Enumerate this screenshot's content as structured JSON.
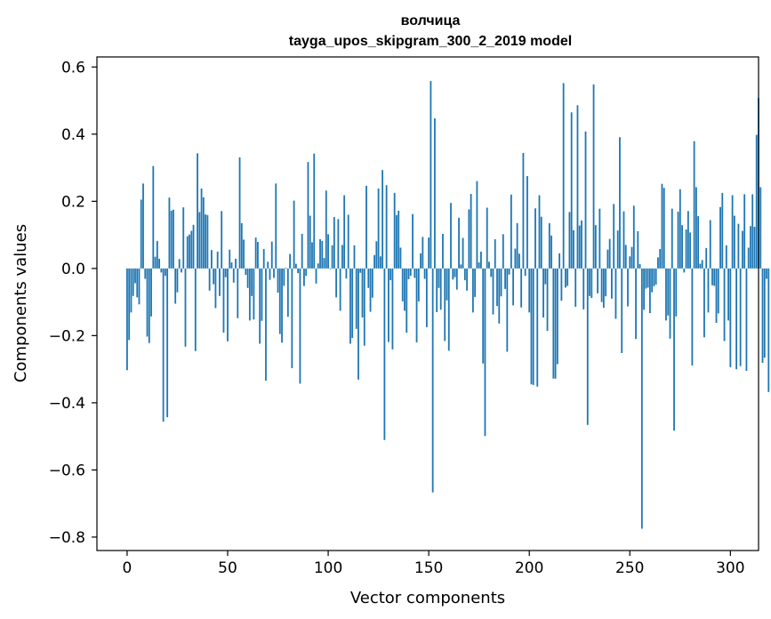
{
  "chart_data": {
    "type": "bar",
    "title": "волчица",
    "subtitle": "tayga_upos_skipgram_300_2_2019 model",
    "xlabel": "Vector components",
    "ylabel": "Components values",
    "xlim": [
      -15,
      314
    ],
    "ylim": [
      -0.84,
      0.63
    ],
    "xticks": [
      0,
      50,
      100,
      150,
      200,
      250,
      300
    ],
    "yticks": [
      -0.8,
      -0.6,
      -0.4,
      -0.2,
      0.0,
      0.2,
      0.4,
      0.6
    ],
    "xtick_labels": [
      "0",
      "50",
      "100",
      "150",
      "200",
      "250",
      "300"
    ],
    "ytick_labels": [
      "−0.8",
      "−0.6",
      "−0.4",
      "−0.2",
      "0.0",
      "0.2",
      "0.4",
      "0.6"
    ],
    "grid": false,
    "bar_color": "#1f77b4",
    "values": [
      -0.303,
      -0.213,
      -0.131,
      -0.082,
      -0.044,
      -0.086,
      -0.107,
      0.205,
      0.253,
      -0.031,
      -0.203,
      -0.222,
      -0.143,
      0.305,
      0.035,
      0.082,
      0.029,
      -0.012,
      -0.456,
      -0.022,
      -0.443,
      0.211,
      0.172,
      0.175,
      -0.105,
      -0.071,
      0.028,
      -0.012,
      0.182,
      -0.233,
      0.096,
      0.101,
      0.112,
      0.13,
      -0.246,
      0.343,
      0.168,
      0.238,
      0.212,
      0.161,
      0.159,
      -0.066,
      0.055,
      -0.047,
      -0.118,
      0.05,
      -0.082,
      0.171,
      -0.191,
      -0.026,
      -0.217,
      0.056,
      0.018,
      -0.042,
      0.029,
      -0.148,
      0.331,
      0.135,
      0.086,
      -0.019,
      -0.058,
      -0.155,
      -0.082,
      -0.152,
      0.092,
      0.079,
      -0.224,
      -0.156,
      0.058,
      -0.334,
      0.02,
      -0.034,
      0.08,
      -0.028,
      0.253,
      -0.072,
      -0.195,
      -0.221,
      -0.052,
      0.002,
      -0.144,
      0.043,
      -0.297,
      0.202,
      0.014,
      -0.014,
      -0.343,
      0.103,
      -0.052,
      -0.022,
      0.317,
      0.157,
      0.078,
      0.342,
      -0.045,
      0.015,
      0.087,
      0.082,
      0.031,
      0.232,
      0.102,
      -0.002,
      0.069,
      0.153,
      -0.086,
      0.147,
      -0.126,
      0.07,
      0.218,
      -0.03,
      0.16,
      -0.224,
      -0.207,
      0.069,
      -0.18,
      -0.331,
      -0.013,
      -0.146,
      -0.23,
      0.246,
      -0.058,
      -0.129,
      -0.087,
      0.04,
      0.081,
      0.238,
      0.036,
      0.293,
      -0.511,
      0.248,
      -0.219,
      -0.035,
      -0.241,
      0.225,
      0.159,
      0.172,
      0.062,
      -0.098,
      -0.126,
      -0.191,
      -0.032,
      -0.022,
      0.162,
      -0.028,
      -0.22,
      -0.098,
      0.045,
      0.094,
      -0.031,
      -0.175,
      0.092,
      0.558,
      -0.667,
      0.447,
      -0.13,
      -0.058,
      -0.123,
      0.103,
      -0.216,
      -0.095,
      -0.245,
      0.195,
      -0.033,
      -0.026,
      -0.063,
      0.151,
      0.012,
      0.091,
      -0.035,
      -0.066,
      0.176,
      0.222,
      -0.131,
      -0.085,
      0.26,
      0.018,
      0.05,
      -0.283,
      -0.499,
      0.181,
      0.02,
      -0.025,
      -0.137,
      0.087,
      -0.112,
      -0.164,
      -0.083,
      0.102,
      -0.061,
      -0.248,
      -0.018,
      0.22,
      -0.11,
      0.059,
      0.135,
      0.044,
      -0.116,
      0.344,
      -0.022,
      0.275,
      -0.131,
      -0.345,
      -0.347,
      0.179,
      -0.352,
      0.218,
      0.154,
      -0.146,
      -0.047,
      -0.186,
      0.135,
      0.098,
      -0.328,
      -0.328,
      -0.285,
      0.045,
      -0.096,
      0.552,
      -0.057,
      -0.052,
      0.168,
      0.465,
      0.114,
      -0.114,
      0.486,
      0.128,
      0.143,
      -0.122,
      0.408,
      -0.466,
      -0.082,
      -0.088,
      0.548,
      0.129,
      -0.074,
      0.178,
      -0.1,
      -0.117,
      -0.083,
      0.056,
      0.088,
      -0.09,
      0.192,
      -0.15,
      0.113,
      0.391,
      -0.252,
      0.17,
      0.07,
      -0.113,
      0.036,
      0.064,
      0.187,
      -0.21,
      0.111,
      0.013,
      -0.775,
      -0.123,
      -0.06,
      -0.057,
      -0.133,
      -0.071,
      -0.053,
      -0.048,
      0.033,
      0.058,
      0.252,
      0.24,
      -0.155,
      -0.14,
      -0.209,
      0.178,
      -0.483,
      -0.143,
      0.169,
      0.236,
      0.129,
      -0.012,
      0.116,
      0.171,
      0.107,
      -0.289,
      0.379,
      0.242,
      0.156,
      0.014,
      0.025,
      -0.205,
      0.061,
      -0.131,
      0.144,
      -0.05,
      -0.052,
      -0.162,
      -0.134,
      0.183,
      0.225,
      -0.216,
      0.069,
      -0.155,
      -0.294,
      0.218,
      0.157,
      -0.3,
      0.133,
      -0.291,
      0.112,
      0.221,
      -0.305,
      0.062,
      0.126,
      0.221,
      0.124,
      0.398,
      0.508,
      0.242,
      -0.281,
      -0.266,
      -0.031,
      -0.368
    ]
  }
}
